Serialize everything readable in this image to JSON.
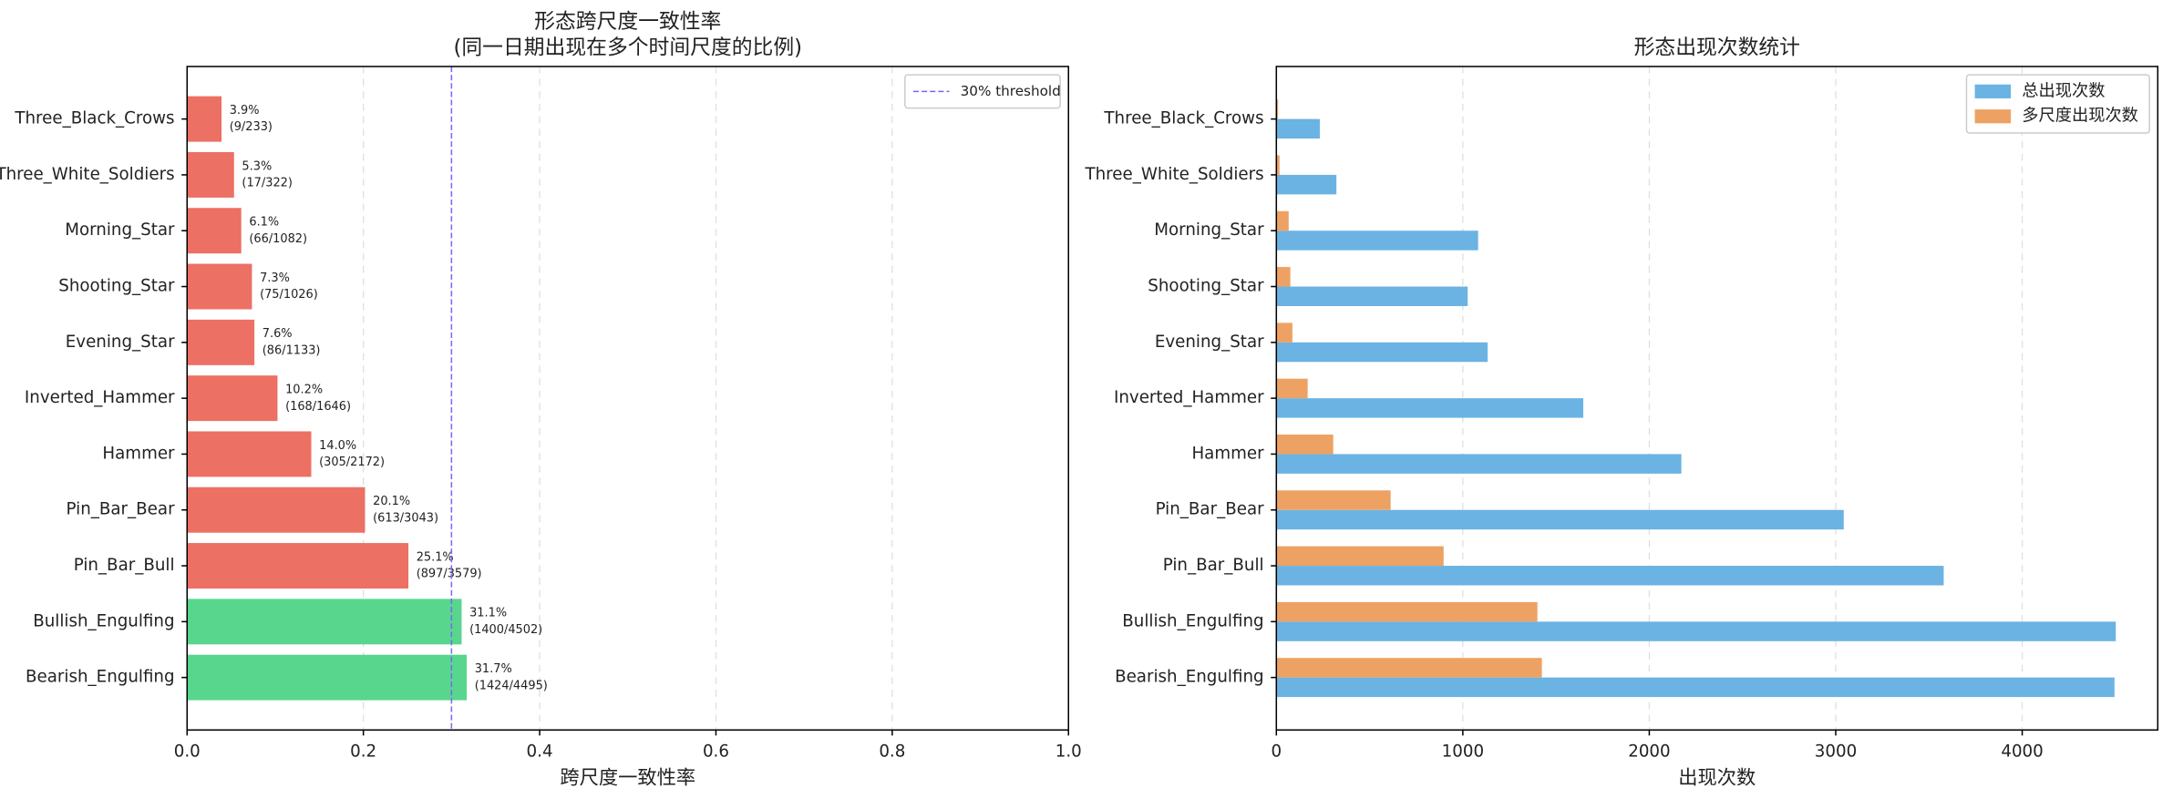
{
  "chart_data": [
    {
      "type": "barh",
      "title": "形态跨尺度一致性率",
      "subtitle": "(同一日期出现在多个时间尺度的比例)",
      "xlabel": "跨尺度一致性率",
      "categories": [
        "Three_Black_Crows",
        "Three_White_Soldiers",
        "Morning_Star",
        "Shooting_Star",
        "Evening_Star",
        "Inverted_Hammer",
        "Hammer",
        "Pin_Bar_Bear",
        "Pin_Bar_Bull",
        "Bullish_Engulfing",
        "Bearish_Engulfing"
      ],
      "values": [
        0.0386,
        0.0528,
        0.061,
        0.0731,
        0.0759,
        0.1021,
        0.1404,
        0.2014,
        0.2506,
        0.311,
        0.3168
      ],
      "value_labels": [
        "3.9%",
        "5.3%",
        "6.1%",
        "7.3%",
        "7.6%",
        "10.2%",
        "14.0%",
        "20.1%",
        "25.1%",
        "31.1%",
        "31.7%"
      ],
      "count_labels": [
        "(9/233)",
        "(17/322)",
        "(66/1082)",
        "(75/1026)",
        "(86/1133)",
        "(168/1646)",
        "(305/2172)",
        "(613/3043)",
        "(897/3579)",
        "(1400/4502)",
        "(1424/4495)"
      ],
      "colors": [
        "#ec7063",
        "#ec7063",
        "#ec7063",
        "#ec7063",
        "#ec7063",
        "#ec7063",
        "#ec7063",
        "#ec7063",
        "#ec7063",
        "#58d68d",
        "#58d68d"
      ],
      "threshold": {
        "value": 0.3,
        "label": "30% threshold",
        "color": "#7b68ee"
      },
      "xlim": [
        0,
        1
      ],
      "xticks": [
        {
          "value": 0,
          "label": "0.0"
        },
        0.2,
        0.4,
        0.6,
        0.8,
        {
          "value": 1,
          "label": "1.0"
        }
      ],
      "grid": true,
      "legend": "upper right"
    },
    {
      "type": "barh",
      "title": "形态出现次数统计",
      "xlabel": "出现次数",
      "categories": [
        "Three_Black_Crows",
        "Three_White_Soldiers",
        "Morning_Star",
        "Shooting_Star",
        "Evening_Star",
        "Inverted_Hammer",
        "Hammer",
        "Pin_Bar_Bear",
        "Pin_Bar_Bull",
        "Bullish_Engulfing",
        "Bearish_Engulfing"
      ],
      "series": [
        {
          "name": "总出现次数",
          "color": "#6bb3e3",
          "values": [
            233,
            322,
            1082,
            1026,
            1133,
            1646,
            2172,
            3043,
            3579,
            4502,
            4495
          ]
        },
        {
          "name": "多尺度出现次数",
          "color": "#eda263",
          "values": [
            9,
            17,
            66,
            75,
            86,
            168,
            305,
            613,
            897,
            1400,
            1424
          ]
        }
      ],
      "xlim": [
        0,
        4727
      ],
      "xticks": [
        0,
        1000,
        2000,
        3000,
        4000
      ],
      "grid": true,
      "legend": "upper right"
    }
  ]
}
